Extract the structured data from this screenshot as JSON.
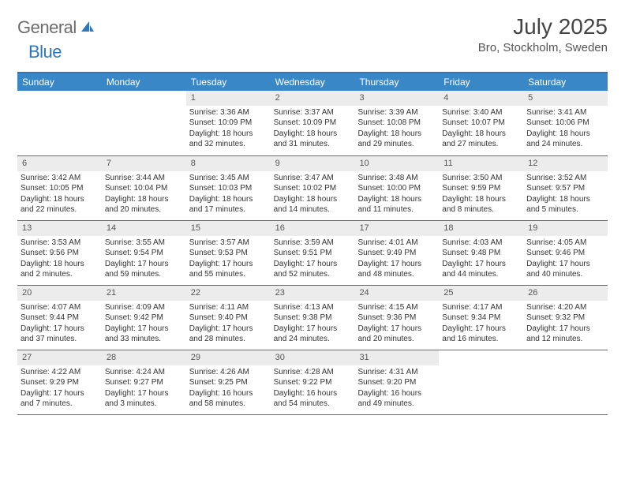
{
  "logo": {
    "general": "General",
    "blue": "Blue",
    "icon_name": "sail-icon",
    "icon_fill": "#2f76bb"
  },
  "title": "July 2025",
  "location": "Bro, Stockholm, Sweden",
  "colors": {
    "header_bg": "#3a87c8",
    "divider": "#2f76bb",
    "daynum_bg": "#ececec",
    "text": "#333333"
  },
  "weekdays": [
    "Sunday",
    "Monday",
    "Tuesday",
    "Wednesday",
    "Thursday",
    "Friday",
    "Saturday"
  ],
  "weeks": [
    [
      {
        "n": "",
        "sr": "",
        "ss": "",
        "dl": ""
      },
      {
        "n": "",
        "sr": "",
        "ss": "",
        "dl": ""
      },
      {
        "n": "1",
        "sr": "3:36 AM",
        "ss": "10:09 PM",
        "dl": "18 hours and 32 minutes."
      },
      {
        "n": "2",
        "sr": "3:37 AM",
        "ss": "10:09 PM",
        "dl": "18 hours and 31 minutes."
      },
      {
        "n": "3",
        "sr": "3:39 AM",
        "ss": "10:08 PM",
        "dl": "18 hours and 29 minutes."
      },
      {
        "n": "4",
        "sr": "3:40 AM",
        "ss": "10:07 PM",
        "dl": "18 hours and 27 minutes."
      },
      {
        "n": "5",
        "sr": "3:41 AM",
        "ss": "10:06 PM",
        "dl": "18 hours and 24 minutes."
      }
    ],
    [
      {
        "n": "6",
        "sr": "3:42 AM",
        "ss": "10:05 PM",
        "dl": "18 hours and 22 minutes."
      },
      {
        "n": "7",
        "sr": "3:44 AM",
        "ss": "10:04 PM",
        "dl": "18 hours and 20 minutes."
      },
      {
        "n": "8",
        "sr": "3:45 AM",
        "ss": "10:03 PM",
        "dl": "18 hours and 17 minutes."
      },
      {
        "n": "9",
        "sr": "3:47 AM",
        "ss": "10:02 PM",
        "dl": "18 hours and 14 minutes."
      },
      {
        "n": "10",
        "sr": "3:48 AM",
        "ss": "10:00 PM",
        "dl": "18 hours and 11 minutes."
      },
      {
        "n": "11",
        "sr": "3:50 AM",
        "ss": "9:59 PM",
        "dl": "18 hours and 8 minutes."
      },
      {
        "n": "12",
        "sr": "3:52 AM",
        "ss": "9:57 PM",
        "dl": "18 hours and 5 minutes."
      }
    ],
    [
      {
        "n": "13",
        "sr": "3:53 AM",
        "ss": "9:56 PM",
        "dl": "18 hours and 2 minutes."
      },
      {
        "n": "14",
        "sr": "3:55 AM",
        "ss": "9:54 PM",
        "dl": "17 hours and 59 minutes."
      },
      {
        "n": "15",
        "sr": "3:57 AM",
        "ss": "9:53 PM",
        "dl": "17 hours and 55 minutes."
      },
      {
        "n": "16",
        "sr": "3:59 AM",
        "ss": "9:51 PM",
        "dl": "17 hours and 52 minutes."
      },
      {
        "n": "17",
        "sr": "4:01 AM",
        "ss": "9:49 PM",
        "dl": "17 hours and 48 minutes."
      },
      {
        "n": "18",
        "sr": "4:03 AM",
        "ss": "9:48 PM",
        "dl": "17 hours and 44 minutes."
      },
      {
        "n": "19",
        "sr": "4:05 AM",
        "ss": "9:46 PM",
        "dl": "17 hours and 40 minutes."
      }
    ],
    [
      {
        "n": "20",
        "sr": "4:07 AM",
        "ss": "9:44 PM",
        "dl": "17 hours and 37 minutes."
      },
      {
        "n": "21",
        "sr": "4:09 AM",
        "ss": "9:42 PM",
        "dl": "17 hours and 33 minutes."
      },
      {
        "n": "22",
        "sr": "4:11 AM",
        "ss": "9:40 PM",
        "dl": "17 hours and 28 minutes."
      },
      {
        "n": "23",
        "sr": "4:13 AM",
        "ss": "9:38 PM",
        "dl": "17 hours and 24 minutes."
      },
      {
        "n": "24",
        "sr": "4:15 AM",
        "ss": "9:36 PM",
        "dl": "17 hours and 20 minutes."
      },
      {
        "n": "25",
        "sr": "4:17 AM",
        "ss": "9:34 PM",
        "dl": "17 hours and 16 minutes."
      },
      {
        "n": "26",
        "sr": "4:20 AM",
        "ss": "9:32 PM",
        "dl": "17 hours and 12 minutes."
      }
    ],
    [
      {
        "n": "27",
        "sr": "4:22 AM",
        "ss": "9:29 PM",
        "dl": "17 hours and 7 minutes."
      },
      {
        "n": "28",
        "sr": "4:24 AM",
        "ss": "9:27 PM",
        "dl": "17 hours and 3 minutes."
      },
      {
        "n": "29",
        "sr": "4:26 AM",
        "ss": "9:25 PM",
        "dl": "16 hours and 58 minutes."
      },
      {
        "n": "30",
        "sr": "4:28 AM",
        "ss": "9:22 PM",
        "dl": "16 hours and 54 minutes."
      },
      {
        "n": "31",
        "sr": "4:31 AM",
        "ss": "9:20 PM",
        "dl": "16 hours and 49 minutes."
      },
      {
        "n": "",
        "sr": "",
        "ss": "",
        "dl": ""
      },
      {
        "n": "",
        "sr": "",
        "ss": "",
        "dl": ""
      }
    ]
  ],
  "labels": {
    "sunrise": "Sunrise:",
    "sunset": "Sunset:",
    "daylight": "Daylight:"
  }
}
